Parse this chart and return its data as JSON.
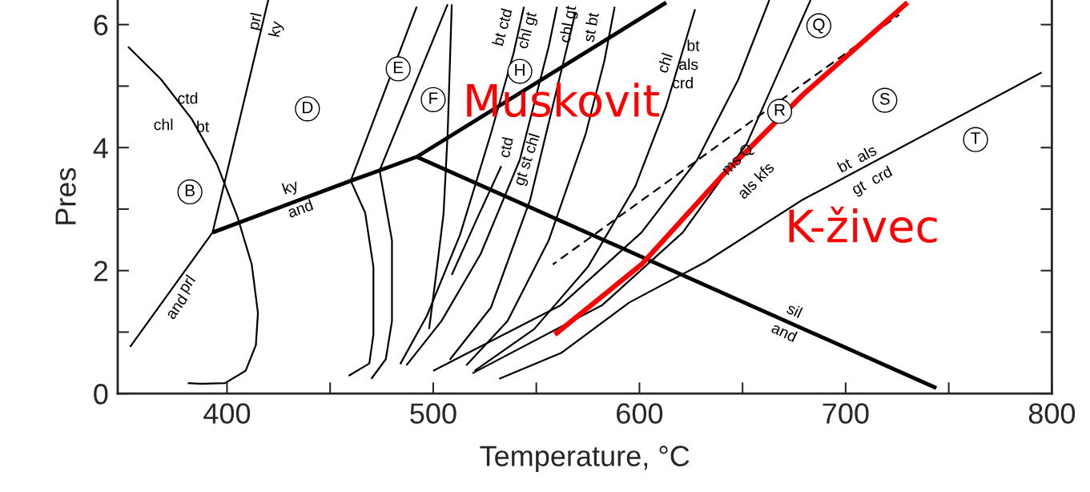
{
  "chart_data": {
    "type": "line",
    "xlabel": "Temperature, °C",
    "ylabel": "Pres",
    "xlim": [
      347,
      800
    ],
    "ylim": [
      0,
      6.4
    ],
    "xticks": [
      400,
      {
        "value": 450,
        "label": null
      },
      500,
      {
        "value": 550,
        "label": null
      },
      600,
      {
        "value": 650,
        "label": null
      },
      700,
      {
        "value": 750,
        "label": null
      },
      800
    ],
    "yticks": [
      0,
      {
        "value": 1,
        "label": null
      },
      2,
      {
        "value": 3,
        "label": null
      },
      4,
      {
        "value": 5,
        "label": null
      },
      6
    ],
    "grid": false,
    "legend": false,
    "marker": "none",
    "series": [
      {
        "color": "#000000",
        "x": [
          353,
          393,
          420
        ],
        "values": [
          0.76,
          2.62,
          6.4
        ]
      },
      {
        "color": "#000000",
        "x": [
          352,
          368,
          383,
          395,
          405,
          412,
          415,
          414,
          409,
          399,
          387,
          381
        ],
        "values": [
          5.64,
          5.11,
          4.46,
          3.74,
          2.88,
          2.1,
          1.31,
          0.79,
          0.37,
          0.17,
          0.16,
          0.17
        ]
      },
      {
        "color": "#000000",
        "x": [
          393,
          460,
          475,
          492,
          613
        ],
        "values": [
          2.62,
          3.46,
          3.64,
          3.85,
          6.36
        ]
      },
      {
        "color": "#000000",
        "x": [
          492,
          744
        ],
        "values": [
          3.85,
          0.09
        ]
      },
      {
        "color": "#000000",
        "x": [
          492,
          460,
          467,
          471,
          471,
          469,
          459
        ],
        "values": [
          6.29,
          3.46,
          2.94,
          2.06,
          0.96,
          0.49,
          0.29
        ]
      },
      {
        "color": "#000000",
        "x": [
          507,
          474,
          480,
          480,
          477,
          470
        ],
        "values": [
          6.33,
          3.63,
          2.49,
          1.18,
          0.56,
          0.24
        ]
      },
      {
        "color": "#000000",
        "x": [
          509,
          507,
          505,
          501,
          498
        ],
        "values": [
          6.33,
          4.23,
          2.92,
          1.83,
          1.05
        ]
      },
      {
        "color": "#000000",
        "x": [
          484,
          497,
          513,
          528,
          539,
          544
        ],
        "values": [
          0.48,
          1.27,
          2.58,
          4.23,
          5.54,
          6.29
        ]
      },
      {
        "color": "#000000",
        "x": [
          487,
          504,
          523,
          542,
          556,
          560
        ],
        "values": [
          0.46,
          1.18,
          2.27,
          3.8,
          5.64,
          6.29
        ]
      },
      {
        "color": "#000000",
        "x": [
          509,
          522,
          533
        ],
        "values": [
          1.93,
          2.9,
          3.7
        ]
      },
      {
        "color": "#000000",
        "x": [
          508,
          528,
          547,
          558,
          569
        ],
        "values": [
          0.55,
          1.4,
          3.15,
          4.68,
          6.2
        ]
      },
      {
        "color": "#000000",
        "x": [
          516,
          536,
          556,
          574,
          583,
          588
        ],
        "values": [
          0.46,
          1.18,
          2.49,
          4.23,
          5.41,
          6.29
        ]
      },
      {
        "color": "#000000",
        "x": [
          520,
          549,
          575,
          598,
          613,
          627
        ],
        "values": [
          0.37,
          1.05,
          2.06,
          3.37,
          4.68,
          6.25
        ]
      },
      {
        "color": "#000000",
        "x": [
          500,
          562,
          601,
          628,
          648,
          663
        ],
        "values": [
          0.37,
          1.44,
          2.62,
          3.8,
          5.11,
          6.4
        ]
      },
      {
        "color": "#000000",
        "x": [
          519,
          582,
          621,
          652,
          683
        ],
        "values": [
          0.33,
          1.44,
          2.62,
          4.06,
          6.4
        ]
      },
      {
        "color": "#000000",
        "x": [
          532,
          562,
          595,
          632,
          679,
          795
        ],
        "values": [
          0.24,
          0.66,
          1.48,
          2.14,
          3.15,
          5.22
        ]
      },
      {
        "color": "#000000",
        "line_style": "dashed",
        "x": [
          558,
          726
        ],
        "values": [
          2.1,
          6.16
        ]
      },
      {
        "color": "#ff0000",
        "x": [
          559,
          601,
          640,
          679,
          730
        ],
        "values": [
          0.96,
          2.1,
          3.54,
          4.85,
          6.36
        ]
      }
    ],
    "annotations": [
      "prl",
      "and",
      "prl",
      "ky",
      "ctd",
      "chl",
      "bt",
      "ky",
      "and",
      "bt ctd",
      "chl gt",
      "chl gt",
      "st bt",
      "ctd",
      "gt st chl",
      "chl",
      "bt",
      "als",
      "crd",
      "ms Q",
      "als kfs",
      "bt  als",
      "gt  crd",
      "sil",
      "and",
      {
        "text": "B",
        "x": 382,
        "y": 3.28
      },
      {
        "text": "D",
        "x": 439,
        "y": 4.63
      },
      {
        "text": "E",
        "x": 483,
        "y": 5.28
      },
      {
        "text": "F",
        "x": 500,
        "y": 4.78
      },
      {
        "text": "H",
        "x": 542,
        "y": 5.24
      },
      {
        "text": "Q",
        "x": 687,
        "y": 5.98
      },
      {
        "text": "R",
        "x": 668,
        "y": 4.59
      },
      {
        "text": "S",
        "x": 719,
        "y": 4.77
      },
      {
        "text": "T",
        "x": 763,
        "y": 4.13
      },
      "Muskovit",
      "K-živec"
    ]
  }
}
